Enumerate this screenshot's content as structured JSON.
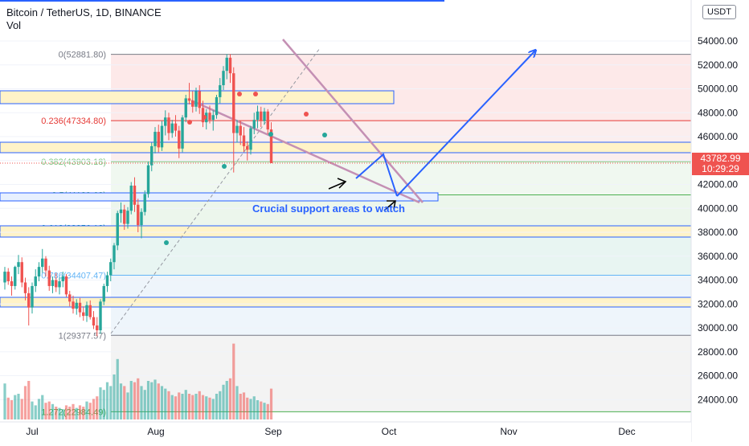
{
  "header": {
    "title": "Bitcoin / TetherUS, 1D, BINANCE",
    "indicator": "Vol",
    "currency": "USDT"
  },
  "price_tag": {
    "price": "43782.99",
    "countdown": "10:29:29"
  },
  "annotation": "Crucial support areas to watch",
  "colors": {
    "up": "#26a69a",
    "down": "#ef5350",
    "arrow": "#2962ff",
    "channel": "#c490b4"
  },
  "chart_data": {
    "type": "candlestick",
    "symbol": "BTCUSDT",
    "interval": "1D",
    "y_axis": {
      "range": [
        22000,
        55000
      ],
      "ticks": [
        24000,
        26000,
        28000,
        30000,
        32000,
        34000,
        36000,
        38000,
        40000,
        42000,
        44000,
        46000,
        48000,
        50000,
        52000,
        54000
      ],
      "tick_labels": [
        "24000.00",
        "26000.00",
        "28000.00",
        "30000.00",
        "32000.00",
        "34000.00",
        "36000.00",
        "38000.00",
        "40000.00",
        "42000.00",
        "44000.00",
        "46000.00",
        "48000.00",
        "50000.00",
        "52000.00",
        "54000.00"
      ]
    },
    "x_axis": {
      "tick_labels": [
        "Jul",
        "Aug",
        "Sep",
        "Oct",
        "Nov",
        "Dec"
      ]
    },
    "fibonacci": [
      {
        "label": "0(52881.80)",
        "value": 52881.8,
        "color": "#787b86"
      },
      {
        "label": "0.236(47334.80)",
        "value": 47334.8,
        "color": "#e53935"
      },
      {
        "label": "0.382(43903.18)",
        "value": 43903.18,
        "color": "#81c784"
      },
      {
        "label": "0.5(41129.68)",
        "value": 41129.68,
        "color": "#4caf50"
      },
      {
        "label": "0.618(38356.18)",
        "value": 38356.18,
        "color": "#089981"
      },
      {
        "label": "0.786(34407.47)",
        "value": 34407.47,
        "color": "#64b5f6"
      },
      {
        "label": "1(29377.57)",
        "value": 29377.57,
        "color": "#787b86"
      },
      {
        "label": "1.272(22984.49)",
        "value": 22984.49,
        "color": "#4caf50"
      }
    ],
    "last_price": 43782.99,
    "candles": [
      [
        33800,
        35100,
        33200,
        34700
      ],
      [
        34700,
        35000,
        33600,
        33900
      ],
      [
        33900,
        34300,
        32700,
        33500
      ],
      [
        33500,
        35200,
        33200,
        35100
      ],
      [
        35100,
        36100,
        34500,
        35500
      ],
      [
        35500,
        35900,
        33400,
        33800
      ],
      [
        33800,
        34200,
        32300,
        32900
      ],
      [
        32900,
        33400,
        30200,
        31700
      ],
      [
        31700,
        33800,
        31200,
        33500
      ],
      [
        33500,
        34900,
        33000,
        34300
      ],
      [
        34300,
        35500,
        33900,
        35100
      ],
      [
        35100,
        36600,
        34600,
        35800
      ],
      [
        35800,
        36000,
        34300,
        34800
      ],
      [
        34800,
        35200,
        33100,
        33500
      ],
      [
        33500,
        34300,
        32900,
        34000
      ],
      [
        34000,
        34600,
        33000,
        33400
      ],
      [
        33400,
        34200,
        32800,
        33900
      ],
      [
        33900,
        34700,
        33400,
        34300
      ],
      [
        34300,
        34500,
        32600,
        32800
      ],
      [
        32800,
        33100,
        31800,
        32200
      ],
      [
        32200,
        32700,
        31200,
        31600
      ],
      [
        31600,
        32400,
        31100,
        32100
      ],
      [
        32100,
        32500,
        30900,
        31300
      ],
      [
        31300,
        31800,
        30600,
        31000
      ],
      [
        31000,
        32200,
        30500,
        31900
      ],
      [
        31900,
        32300,
        30700,
        30900
      ],
      [
        30900,
        31400,
        29900,
        30200
      ],
      [
        30200,
        30900,
        29300,
        29800
      ],
      [
        29800,
        32400,
        29500,
        32200
      ],
      [
        32200,
        33700,
        31900,
        33500
      ],
      [
        33500,
        34700,
        33000,
        34400
      ],
      [
        34400,
        35800,
        33900,
        35500
      ],
      [
        35500,
        37100,
        34900,
        36900
      ],
      [
        36900,
        39800,
        36500,
        39600
      ],
      [
        39600,
        40500,
        38800,
        39900
      ],
      [
        39900,
        40300,
        38200,
        38700
      ],
      [
        38700,
        40100,
        38300,
        39800
      ],
      [
        39800,
        42200,
        39500,
        41900
      ],
      [
        41900,
        42600,
        39700,
        40300
      ],
      [
        40300,
        40800,
        38000,
        38600
      ],
      [
        38600,
        40000,
        37500,
        39700
      ],
      [
        39700,
        41500,
        39400,
        41200
      ],
      [
        41200,
        43900,
        40900,
        43600
      ],
      [
        43600,
        45500,
        43100,
        45200
      ],
      [
        45200,
        46800,
        44600,
        46400
      ],
      [
        46400,
        47000,
        44700,
        45100
      ],
      [
        45100,
        47300,
        44800,
        46900
      ],
      [
        46900,
        48200,
        46100,
        47600
      ],
      [
        47600,
        48000,
        45700,
        46300
      ],
      [
        46300,
        47400,
        45900,
        47100
      ],
      [
        47100,
        47800,
        46000,
        46500
      ],
      [
        46500,
        46900,
        44200,
        45000
      ],
      [
        45000,
        47800,
        44700,
        47600
      ],
      [
        47600,
        49500,
        47200,
        49200
      ],
      [
        49200,
        50500,
        48700,
        49000
      ],
      [
        49000,
        49800,
        48000,
        48500
      ],
      [
        48500,
        50100,
        48100,
        49800
      ],
      [
        49800,
        50300,
        47900,
        48400
      ],
      [
        48400,
        49000,
        46800,
        47200
      ],
      [
        47200,
        48300,
        46600,
        48000
      ],
      [
        48000,
        48600,
        47100,
        47400
      ],
      [
        47400,
        48200,
        46500,
        47800
      ],
      [
        47800,
        49500,
        47500,
        49300
      ],
      [
        49300,
        50900,
        48800,
        50300
      ],
      [
        50300,
        51900,
        49900,
        51500
      ],
      [
        51500,
        52900,
        50800,
        52600
      ],
      [
        52600,
        52900,
        50500,
        51300
      ],
      [
        51300,
        51800,
        43000,
        46300
      ],
      [
        46300,
        47400,
        45500,
        46900
      ],
      [
        46900,
        47300,
        45300,
        46100
      ],
      [
        46100,
        46800,
        44700,
        45200
      ],
      [
        45200,
        45600,
        44000,
        44900
      ],
      [
        44900,
        46900,
        44500,
        46700
      ],
      [
        46700,
        48000,
        46200,
        47400
      ],
      [
        47400,
        48600,
        46700,
        48100
      ],
      [
        48100,
        48500,
        46800,
        47300
      ],
      [
        47300,
        48400,
        47000,
        48100
      ],
      [
        48100,
        48300,
        46200,
        46600
      ],
      [
        46600,
        47200,
        43800,
        43782.99
      ]
    ],
    "volume": [
      2.8,
      1.7,
      1.5,
      1.9,
      2.0,
      1.6,
      2.6,
      3.0,
      1.4,
      1.1,
      1.6,
      1.9,
      1.3,
      1.4,
      1.2,
      1.0,
      0.9,
      0.8,
      1.1,
      1.0,
      1.2,
      0.9,
      1.1,
      1.0,
      1.4,
      1.3,
      1.6,
      1.8,
      2.5,
      2.3,
      2.9,
      2.6,
      3.5,
      4.7,
      2.8,
      2.6,
      2.1,
      3.0,
      2.9,
      3.2,
      2.6,
      2.3,
      3.0,
      2.9,
      3.1,
      2.8,
      2.6,
      2.4,
      2.2,
      1.9,
      1.8,
      2.1,
      2.0,
      2.3,
      2.0,
      1.9,
      2.0,
      2.2,
      1.9,
      1.8,
      1.7,
      1.6,
      2.0,
      2.2,
      2.7,
      3.0,
      3.2,
      5.9,
      2.6,
      2.0,
      2.1,
      1.7,
      1.6,
      1.8,
      1.5,
      1.4,
      1.3,
      1.2,
      2.4
    ]
  }
}
